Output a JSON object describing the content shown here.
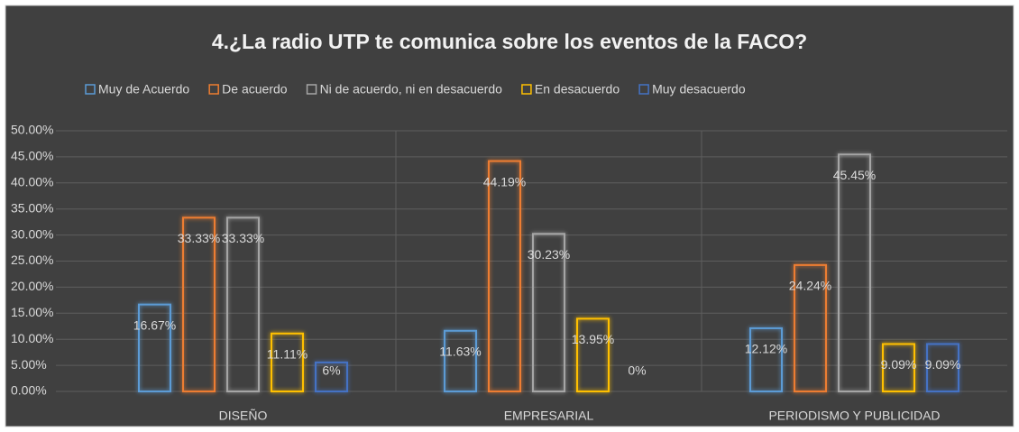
{
  "chart_data": {
    "type": "bar",
    "title": "4.¿La radio UTP te comunica sobre los eventos de la FACO?",
    "categories": [
      "DISEÑO",
      "EMPRESARIAL",
      "PERIODISMO Y PUBLICIDAD"
    ],
    "series": [
      {
        "name": "Muy de Acuerdo",
        "color": "#5b9bd5",
        "values": [
          16.67,
          11.63,
          12.12
        ],
        "value_labels": [
          "16.67%",
          "11.63%",
          "12.12%"
        ]
      },
      {
        "name": "De acuerdo",
        "color": "#ed7d31",
        "values": [
          33.33,
          44.19,
          24.24
        ],
        "value_labels": [
          "33.33%",
          "44.19%",
          "24.24%"
        ]
      },
      {
        "name": "Ni de acuerdo, ni en desacuerdo",
        "color": "#a5a5a5",
        "values": [
          33.33,
          30.23,
          45.45
        ],
        "value_labels": [
          "33.33%",
          "30.23%",
          "45.45%"
        ]
      },
      {
        "name": "En desacuerdo",
        "color": "#ffc000",
        "values": [
          11.11,
          13.95,
          9.09
        ],
        "value_labels": [
          "11.11%",
          "13.95%",
          "9.09%"
        ]
      },
      {
        "name": "Muy desacuerdo",
        "color": "#4472c4",
        "values": [
          5.56,
          0,
          9.09
        ],
        "value_labels": [
          "6%",
          "0%",
          "9.09%"
        ]
      }
    ],
    "ylim": [
      0,
      50
    ],
    "yticks": [
      {
        "value": 0,
        "label": "0.00%"
      },
      {
        "value": 5,
        "label": "5.00%"
      },
      {
        "value": 10,
        "label": "10.00%"
      },
      {
        "value": 15,
        "label": "15.00%"
      },
      {
        "value": 20,
        "label": "20.00%"
      },
      {
        "value": 25,
        "label": "25.00%"
      },
      {
        "value": 30,
        "label": "30.00%"
      },
      {
        "value": 35,
        "label": "35.00%"
      },
      {
        "value": 40,
        "label": "40.00%"
      },
      {
        "value": 45,
        "label": "45.00%"
      },
      {
        "value": 50,
        "label": "50.00%"
      }
    ],
    "grid": true,
    "legend": "top"
  }
}
